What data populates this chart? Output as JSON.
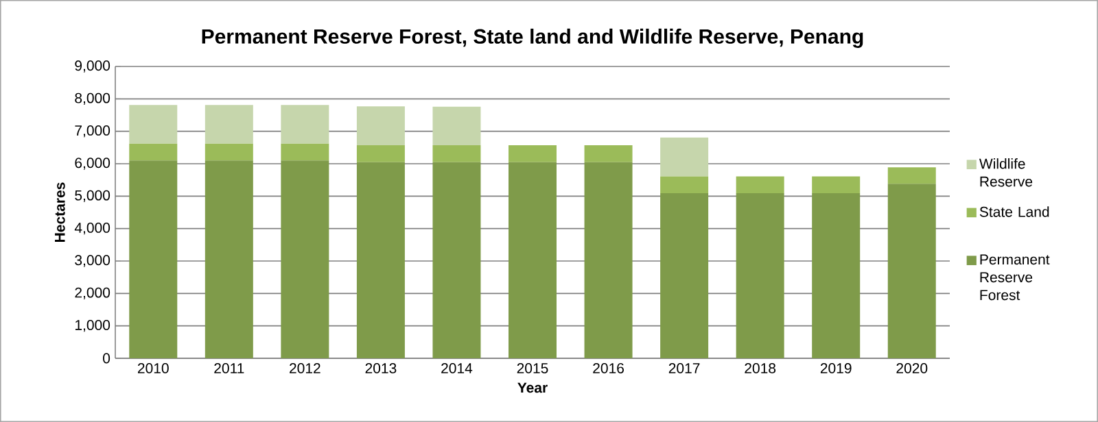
{
  "chart_data": {
    "type": "bar",
    "stacked": true,
    "title": "Permanent Reserve Forest, State land and Wildlife Reserve, Penang",
    "xlabel": "Year",
    "ylabel": "Hectares",
    "categories": [
      "2010",
      "2011",
      "2012",
      "2013",
      "2014",
      "2015",
      "2016",
      "2017",
      "2018",
      "2019",
      "2020"
    ],
    "series": [
      {
        "name": "Permanent Reserve Forest",
        "color": "#7f9b4a",
        "values": [
          6100,
          6100,
          6100,
          6050,
          6050,
          6050,
          6050,
          5090,
          5090,
          5090,
          5380
        ]
      },
      {
        "name": "State Land",
        "color": "#9bbb59",
        "values": [
          520,
          520,
          520,
          520,
          520,
          520,
          520,
          520,
          520,
          520,
          510
        ]
      },
      {
        "name": "Wildlife Reserve",
        "color": "#c6d6ac",
        "values": [
          1190,
          1190,
          1190,
          1200,
          1190,
          null,
          null,
          1200,
          null,
          null,
          null
        ]
      }
    ],
    "ylim": [
      0,
      9000
    ],
    "yticks": [
      {
        "value": 0,
        "label": "0"
      },
      {
        "value": 1000,
        "label": "1,000"
      },
      {
        "value": 2000,
        "label": "2,000"
      },
      {
        "value": 3000,
        "label": "3,000"
      },
      {
        "value": 4000,
        "label": "4,000"
      },
      {
        "value": 5000,
        "label": "5,000"
      },
      {
        "value": 6000,
        "label": "6,000"
      },
      {
        "value": 7000,
        "label": "7,000"
      },
      {
        "value": 8000,
        "label": "8,000"
      },
      {
        "value": 9000,
        "label": "9,000"
      }
    ],
    "grid": "y",
    "legend": "right"
  }
}
